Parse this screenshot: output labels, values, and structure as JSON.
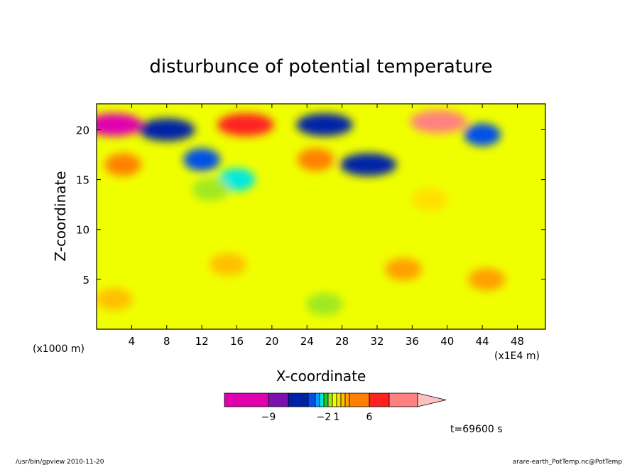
{
  "chart_data": {
    "type": "heatmap",
    "title": "disturbunce of potential temperature",
    "xlabel": "X-coordinate",
    "ylabel": "Z-coordinate",
    "x_unit": "(x1E4 m)",
    "y_unit": "(x1000 m)",
    "xlim": [
      0,
      51.2
    ],
    "ylim": [
      0,
      22.6
    ],
    "x_ticks": [
      4,
      8,
      12,
      16,
      20,
      24,
      28,
      32,
      36,
      40,
      44,
      48
    ],
    "y_ticks": [
      5,
      10,
      15,
      20
    ],
    "time_label": "t=69600 s",
    "colorbar": {
      "levels": [
        -11,
        -9,
        -7,
        -5,
        -4,
        -3,
        -2,
        -1,
        0,
        1,
        2,
        3,
        4,
        6,
        8,
        10
      ],
      "colors": [
        "#e000b0",
        "#7a10b0",
        "#0020a8",
        "#0050e8",
        "#00a0ff",
        "#00e8e0",
        "#20c830",
        "#a0e820",
        "#f0ff00",
        "#ffe000",
        "#ffc000",
        "#ffa000",
        "#ff8000",
        "#ff2020",
        "#ff8080",
        "#ffc0c0"
      ],
      "tick_labels": [
        {
          "value": -9,
          "label": "−9"
        },
        {
          "value": -2,
          "label": "−2"
        },
        {
          "value": 1,
          "label": "1"
        },
        {
          "value": 6,
          "label": "6"
        }
      ]
    },
    "features": [
      {
        "x": 2,
        "z": 20.5,
        "value": -11
      },
      {
        "x": 8,
        "z": 20,
        "value": -7
      },
      {
        "x": 17,
        "z": 20.5,
        "value": 6
      },
      {
        "x": 26,
        "z": 20.5,
        "value": -7
      },
      {
        "x": 31,
        "z": 16.5,
        "value": -7
      },
      {
        "x": 39,
        "z": 20.8,
        "value": 8
      },
      {
        "x": 44,
        "z": 19.5,
        "value": -5
      },
      {
        "x": 3,
        "z": 16.5,
        "value": 4
      },
      {
        "x": 25,
        "z": 17,
        "value": 4
      },
      {
        "x": 12,
        "z": 17,
        "value": -5
      },
      {
        "x": 16,
        "z": 15,
        "value": -3
      },
      {
        "x": 13,
        "z": 14,
        "value": -1
      },
      {
        "x": 38,
        "z": 13,
        "value": 1
      },
      {
        "x": 15,
        "z": 6.5,
        "value": 2
      },
      {
        "x": 35,
        "z": 6,
        "value": 3
      },
      {
        "x": 44.5,
        "z": 5,
        "value": 3
      },
      {
        "x": 26,
        "z": 2.5,
        "value": -1
      },
      {
        "x": 2,
        "z": 3,
        "value": 2
      }
    ]
  },
  "footer": {
    "left": "/usr/bin/gpview   2010-11-20",
    "right": "arare-earth_PotTemp.nc@PotTemp"
  }
}
